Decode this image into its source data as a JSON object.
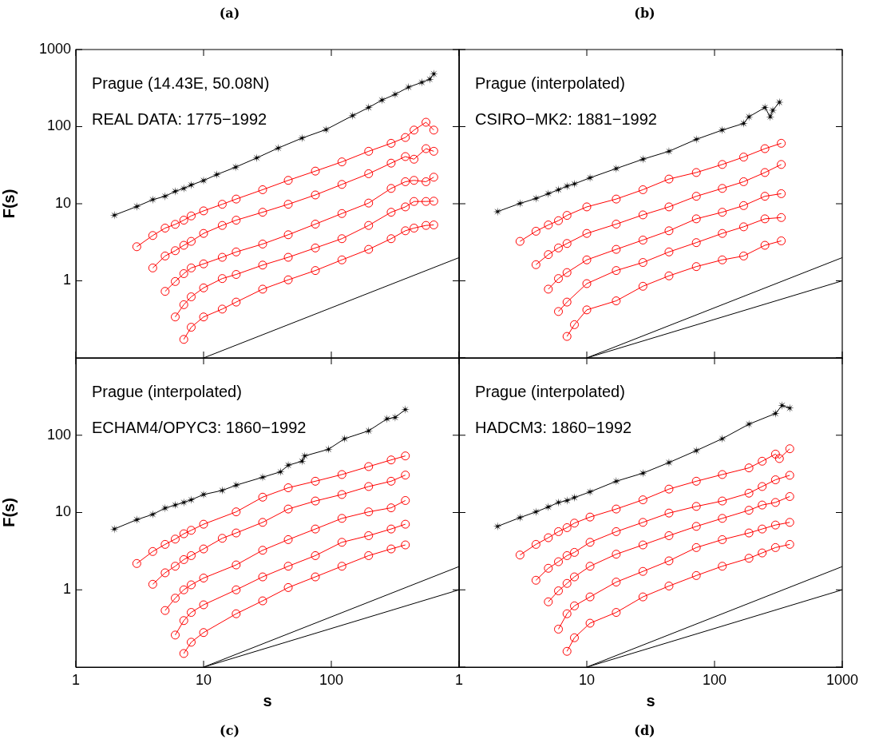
{
  "chart_data": [
    {
      "type": "line",
      "title": "(a)",
      "ylabel": "F(s)",
      "log": "xy",
      "xlim": [
        1,
        1000
      ],
      "ylim": [
        0.1,
        1000
      ],
      "xticks": [
        1,
        10,
        100,
        1000
      ],
      "yticks": [
        1,
        10,
        100,
        1000
      ],
      "tick_labels": "y",
      "annotations": [
        "Prague (14.43E, 50.08N)",
        "REAL DATA: 1775−1992"
      ],
      "series": [
        {
          "color": "#000000",
          "marker": "star",
          "x": [
            2,
            3,
            4,
            5,
            6,
            7,
            8,
            10,
            12.7,
            17.8,
            26.1,
            38.3,
            59,
            90.8,
            147,
            196,
            249,
            316,
            402,
            511,
            590,
            634
          ],
          "values": [
            7.1,
            9.2,
            11.3,
            12.5,
            14.5,
            15.8,
            17.5,
            20,
            23.9,
            29.8,
            39.3,
            52.7,
            71,
            91.6,
            139,
            177,
            221,
            262,
            325,
            375,
            412,
            483
          ]
        },
        {
          "color": "#ff0000",
          "marker": "circle",
          "x": [
            3,
            4,
            5,
            6,
            7,
            8,
            10,
            14,
            18,
            29,
            46,
            75,
            121,
            196,
            294,
            380,
            444,
            551,
            634
          ],
          "values": [
            2.77,
            3.87,
            4.83,
            5.4,
            6.12,
            6.95,
            8.08,
            9.84,
            11.5,
            15.2,
            20.1,
            26.5,
            34.9,
            47.9,
            60.8,
            72.3,
            90.2,
            114,
            90.2
          ]
        },
        {
          "color": "#ff0000",
          "marker": "circle",
          "x": [
            4,
            5,
            6,
            7,
            8,
            10,
            14,
            18,
            29,
            46,
            75,
            121,
            196,
            294,
            380,
            444,
            551,
            634
          ],
          "values": [
            1.47,
            2.1,
            2.46,
            2.89,
            3.25,
            4.12,
            5.23,
            6.12,
            7.76,
            9.84,
            13,
            17.8,
            24.5,
            33.6,
            40.9,
            37.8,
            51.8,
            47.9
          ]
        },
        {
          "color": "#ff0000",
          "marker": "circle",
          "x": [
            5,
            6,
            7,
            8,
            10,
            14,
            18,
            29,
            46,
            75,
            121,
            196,
            294,
            380,
            444,
            551,
            634
          ],
          "values": [
            0.73,
            0.98,
            1.24,
            1.47,
            1.66,
            2.02,
            2.37,
            3,
            3.96,
            5.44,
            7.46,
            10.2,
            15.8,
            19.3,
            20.1,
            19.3,
            22.1
          ]
        },
        {
          "color": "#ff0000",
          "marker": "circle",
          "x": [
            6,
            7,
            8,
            10,
            14,
            18,
            29,
            46,
            75,
            121,
            196,
            294,
            380,
            444,
            551,
            634
          ],
          "values": [
            0.34,
            0.49,
            0.62,
            0.81,
            1.07,
            1.21,
            1.6,
            2.02,
            2.67,
            3.52,
            5.23,
            7.76,
            9.1,
            10.7,
            10.7,
            10.8
          ]
        },
        {
          "color": "#ff0000",
          "marker": "circle",
          "x": [
            7,
            8,
            10,
            14,
            18,
            29,
            46,
            75,
            121,
            196,
            294,
            380,
            444,
            551,
            634
          ],
          "values": [
            0.174,
            0.25,
            0.34,
            0.43,
            0.53,
            0.78,
            1.03,
            1.36,
            1.87,
            2.56,
            3.52,
            4.46,
            4.83,
            5.23,
            5.31
          ]
        },
        {
          "color": "#000000",
          "marker": "none",
          "x": [
            10,
            1000
          ],
          "values": [
            0.1,
            2
          ]
        }
      ]
    },
    {
      "type": "line",
      "title": "(b)",
      "log": "xy",
      "xlim": [
        1,
        1000
      ],
      "ylim": [
        0.1,
        1000
      ],
      "xticks": [
        1,
        10,
        100,
        1000
      ],
      "yticks": [
        0.1,
        1,
        10,
        100,
        1000
      ],
      "tick_labels": false,
      "annotations": [
        "Prague (interpolated)",
        "CSIRO−MK2: 1881−1992"
      ],
      "series": [
        {
          "color": "#000000",
          "marker": "star",
          "x": [
            2,
            3,
            4,
            5,
            6,
            7,
            8,
            10.6,
            17,
            27.5,
            44,
            72,
            115,
            169,
            186,
            248,
            273,
            286,
            322
          ],
          "values": [
            7.9,
            10.1,
            11.7,
            13.5,
            15.2,
            16.9,
            18.1,
            21.7,
            28.6,
            37.8,
            47.9,
            68.4,
            90.2,
            110,
            134,
            177,
            134,
            163,
            207
          ]
        },
        {
          "color": "#ff0000",
          "marker": "circle",
          "x": [
            3,
            4,
            5,
            6,
            7,
            10,
            17,
            27.5,
            44,
            72,
            115,
            169,
            248,
            333
          ],
          "values": [
            3.25,
            4.4,
            5.31,
            6.03,
            7.06,
            9.1,
            11.5,
            15.2,
            20.9,
            25.4,
            32.3,
            40.3,
            51.8,
            60.8
          ]
        },
        {
          "color": "#ff0000",
          "marker": "circle",
          "x": [
            4,
            5,
            6,
            7,
            10,
            17,
            27.5,
            44,
            72,
            115,
            169,
            248,
            333
          ],
          "values": [
            1.62,
            2.19,
            2.67,
            3.05,
            4.12,
            5.44,
            7.17,
            9.1,
            12.5,
            15.8,
            19.3,
            25.4,
            32.3
          ]
        },
        {
          "color": "#ff0000",
          "marker": "circle",
          "x": [
            5,
            6,
            7,
            10,
            17,
            27.5,
            44,
            72,
            115,
            169,
            248,
            333
          ],
          "values": [
            0.78,
            1.07,
            1.28,
            1.87,
            2.56,
            3.38,
            4.46,
            6.37,
            7.76,
            9.46,
            12.5,
            13.5
          ]
        },
        {
          "color": "#ff0000",
          "marker": "circle",
          "x": [
            6,
            7,
            10,
            17,
            27.5,
            44,
            72,
            115,
            169,
            248,
            333
          ],
          "values": [
            0.4,
            0.53,
            0.92,
            1.36,
            1.73,
            2.37,
            3.13,
            4.12,
            5.02,
            6.37,
            6.62
          ]
        },
        {
          "color": "#ff0000",
          "marker": "circle",
          "x": [
            7,
            8,
            10,
            17,
            27.5,
            44,
            72,
            115,
            169,
            248,
            333
          ],
          "values": [
            0.19,
            0.27,
            0.42,
            0.55,
            0.85,
            1.16,
            1.53,
            1.87,
            2.1,
            2.89,
            3.3
          ]
        },
        {
          "color": "#000000",
          "marker": "none",
          "x": [
            10,
            1000
          ],
          "values": [
            0.1,
            2
          ]
        },
        {
          "color": "#000000",
          "marker": "none",
          "x": [
            10,
            1000
          ],
          "values": [
            0.1,
            1
          ]
        }
      ]
    },
    {
      "type": "line",
      "title": "(c)",
      "xlabel": "s",
      "ylabel": "F(s)",
      "log": "xy",
      "xlim": [
        1,
        1000
      ],
      "ylim": [
        0.1,
        1000
      ],
      "xticks": [
        1,
        10,
        100
      ],
      "yticks": [
        1,
        10,
        100
      ],
      "annotations": [
        "Prague (interpolated)",
        "ECHAM4/OPYC3: 1860−1992"
      ],
      "series": [
        {
          "color": "#000000",
          "marker": "star",
          "x": [
            2,
            3,
            4,
            5,
            6,
            7,
            8,
            10,
            14,
            18,
            29,
            40,
            46,
            59,
            62,
            95,
            127,
            196,
            273,
            316,
            380
          ],
          "values": [
            6.12,
            8.08,
            9.46,
            11.4,
            12.5,
            13.5,
            14.6,
            17.1,
            19.3,
            22.6,
            28.6,
            33.6,
            40.9,
            46.1,
            54,
            65.8,
            90.2,
            114,
            163,
            170,
            215
          ]
        },
        {
          "color": "#ff0000",
          "marker": "circle",
          "x": [
            3,
            4,
            5,
            6,
            7,
            8,
            10,
            18,
            29,
            46,
            75,
            121,
            196,
            294,
            380
          ],
          "values": [
            2.19,
            3.13,
            3.87,
            4.53,
            5.31,
            5.89,
            7.06,
            10.2,
            15.8,
            20.9,
            25.4,
            31,
            39.3,
            47.9,
            54
          ]
        },
        {
          "color": "#ff0000",
          "marker": "circle",
          "x": [
            4,
            5,
            6,
            7,
            8,
            10,
            14,
            18,
            29,
            46,
            75,
            121,
            196,
            294,
            380
          ],
          "values": [
            1.18,
            1.66,
            2.02,
            2.46,
            2.77,
            3.38,
            4.64,
            5.44,
            7.46,
            11.1,
            14.1,
            17.1,
            21.7,
            25.4,
            30.5
          ]
        },
        {
          "color": "#ff0000",
          "marker": "circle",
          "x": [
            5,
            6,
            7,
            8,
            10,
            18,
            29,
            46,
            75,
            121,
            196,
            294,
            380
          ],
          "values": [
            0.54,
            0.78,
            1,
            1.16,
            1.42,
            2.1,
            3.25,
            4.46,
            6.12,
            8.4,
            10.2,
            11.5,
            14.3
          ]
        },
        {
          "color": "#ff0000",
          "marker": "circle",
          "x": [
            6,
            7,
            8,
            10,
            18,
            29,
            46,
            75,
            121,
            196,
            294,
            380
          ],
          "values": [
            0.26,
            0.4,
            0.51,
            0.64,
            1,
            1.47,
            2.02,
            2.77,
            4.12,
            5.02,
            6.12,
            7.06
          ]
        },
        {
          "color": "#ff0000",
          "marker": "circle",
          "x": [
            7,
            8,
            10,
            18,
            29,
            46,
            75,
            121,
            196,
            294,
            380
          ],
          "values": [
            0.15,
            0.21,
            0.28,
            0.49,
            0.72,
            1.07,
            1.47,
            2.02,
            2.77,
            3.38,
            3.81
          ]
        },
        {
          "color": "#000000",
          "marker": "none",
          "x": [
            10,
            1000
          ],
          "values": [
            0.1,
            2
          ]
        },
        {
          "color": "#000000",
          "marker": "none",
          "x": [
            10,
            1000
          ],
          "values": [
            0.1,
            1
          ]
        }
      ]
    },
    {
      "type": "line",
      "title": "(d)",
      "xlabel": "s",
      "log": "xy",
      "xlim": [
        1,
        1000
      ],
      "ylim": [
        0.1,
        1000
      ],
      "xticks": [
        1,
        10,
        100,
        1000
      ],
      "yticks": [
        0.1,
        1,
        10,
        100,
        1000
      ],
      "tick_labels": "x",
      "annotations": [
        "Prague (interpolated)",
        "HADCM3: 1860−1992"
      ],
      "series": [
        {
          "color": "#000000",
          "marker": "star",
          "x": [
            2,
            3,
            4,
            5,
            6,
            7,
            8,
            10.6,
            17,
            27.5,
            44,
            72,
            115,
            186,
            300,
            338,
            388
          ],
          "values": [
            6.62,
            8.6,
            10.2,
            11.8,
            13.5,
            14.3,
            15.6,
            18.5,
            25.4,
            32.3,
            44.3,
            63.2,
            90.2,
            139,
            191,
            243,
            224
          ]
        },
        {
          "color": "#ff0000",
          "marker": "circle",
          "x": [
            3,
            4,
            5,
            6,
            7,
            8,
            10.6,
            17,
            27.5,
            44,
            72,
            115,
            186,
            236,
            300,
            322,
            388
          ],
          "values": [
            2.82,
            3.87,
            4.72,
            5.66,
            6.37,
            7.29,
            8.74,
            11.1,
            14.6,
            20.1,
            25.4,
            31,
            37.8,
            46.1,
            57,
            49.9,
            66.8
          ]
        },
        {
          "color": "#ff0000",
          "marker": "circle",
          "x": [
            4,
            5,
            6,
            7,
            8,
            10.6,
            17,
            27.5,
            44,
            72,
            115,
            186,
            236,
            300,
            388
          ],
          "values": [
            1.33,
            1.9,
            2.31,
            2.77,
            3.05,
            4.12,
            5.66,
            7.46,
            9.84,
            12,
            14.1,
            17.8,
            21.7,
            26.5,
            30.3
          ]
        },
        {
          "color": "#ff0000",
          "marker": "circle",
          "x": [
            5,
            6,
            7,
            8,
            10.6,
            17,
            27.5,
            44,
            72,
            115,
            186,
            236,
            300,
            388
          ],
          "values": [
            0.7,
            0.97,
            1.21,
            1.47,
            2.02,
            2.89,
            3.81,
            5.02,
            6.62,
            8.4,
            10.7,
            12.5,
            13.5,
            16.1
          ]
        },
        {
          "color": "#ff0000",
          "marker": "circle",
          "x": [
            6,
            7,
            8,
            10.6,
            17,
            27.5,
            44,
            72,
            115,
            186,
            236,
            300,
            388
          ],
          "values": [
            0.31,
            0.49,
            0.62,
            0.81,
            1.26,
            1.73,
            2.37,
            3.52,
            4.46,
            5.44,
            6.12,
            6.89,
            7.46
          ]
        },
        {
          "color": "#ff0000",
          "marker": "circle",
          "x": [
            7,
            8,
            10.6,
            17,
            27.5,
            44,
            72,
            115,
            186,
            236,
            300,
            388
          ],
          "values": [
            0.16,
            0.24,
            0.37,
            0.51,
            0.81,
            1.12,
            1.53,
            2.02,
            2.56,
            3,
            3.52,
            3.87
          ]
        },
        {
          "color": "#000000",
          "marker": "none",
          "x": [
            10,
            1000
          ],
          "values": [
            0.1,
            2
          ]
        },
        {
          "color": "#000000",
          "marker": "none",
          "x": [
            10,
            1000
          ],
          "values": [
            0.1,
            1
          ]
        }
      ]
    }
  ]
}
